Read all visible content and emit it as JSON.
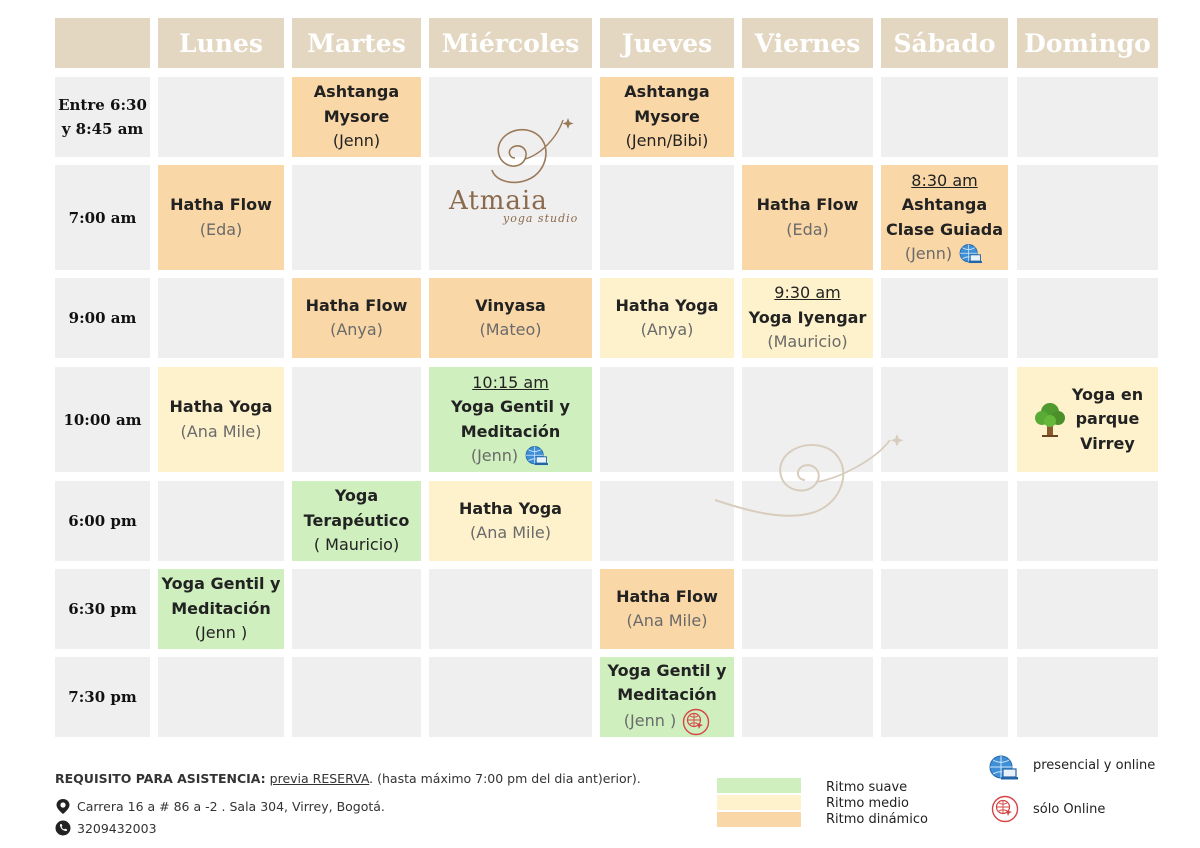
{
  "days": [
    "Lunes",
    "Martes",
    "Miércoles",
    "Jueves",
    "Viernes",
    "Sábado",
    "Domingo"
  ],
  "times": [
    [
      "Entre 6:30",
      "y 8:45 am"
    ],
    [
      "7:00 am"
    ],
    [
      "9:00 am"
    ],
    [
      "10:00 am"
    ],
    [
      "6:00 pm"
    ],
    [
      "6:30 pm"
    ],
    [
      "7:30 pm"
    ]
  ],
  "classes": [
    {
      "row": 0,
      "col": 1,
      "rhythm": "dinamico",
      "lines": [
        {
          "text": "Ashtanga",
          "style": "b"
        },
        {
          "text": "Mysore",
          "style": "b"
        },
        {
          "text": "(Jenn)",
          "style": ""
        }
      ]
    },
    {
      "row": 0,
      "col": 3,
      "rhythm": "dinamico",
      "lines": [
        {
          "text": "Ashtanga",
          "style": "b"
        },
        {
          "text": "Mysore",
          "style": "b"
        },
        {
          "text": "(Jenn/Bibi)",
          "style": ""
        }
      ]
    },
    {
      "row": 1,
      "col": 0,
      "rhythm": "dinamico",
      "lines": [
        {
          "text": "Hatha Flow",
          "style": "b"
        },
        {
          "text": "(Eda)",
          "style": "t"
        }
      ]
    },
    {
      "row": 1,
      "col": 4,
      "rhythm": "dinamico",
      "lines": [
        {
          "text": "Hatha Flow",
          "style": "b"
        },
        {
          "text": "(Eda)",
          "style": "t"
        }
      ]
    },
    {
      "row": 1,
      "col": 5,
      "rhythm": "dinamico",
      "icon": "globe-laptop-icon",
      "lines": [
        {
          "text": "8:30 am",
          "style": "u"
        },
        {
          "text": "Ashtanga",
          "style": "b"
        },
        {
          "text": "Clase Guiada",
          "style": "b"
        },
        {
          "text": "(Jenn)",
          "style": "t"
        }
      ]
    },
    {
      "row": 2,
      "col": 1,
      "rhythm": "dinamico",
      "lines": [
        {
          "text": "Hatha Flow",
          "style": "b"
        },
        {
          "text": "(Anya)",
          "style": "t"
        }
      ]
    },
    {
      "row": 2,
      "col": 2,
      "rhythm": "dinamico",
      "lines": [
        {
          "text": "Vinyasa",
          "style": "b"
        },
        {
          "text": "(Mateo)",
          "style": "t"
        }
      ]
    },
    {
      "row": 2,
      "col": 3,
      "rhythm": "medio",
      "lines": [
        {
          "text": "Hatha Yoga",
          "style": "b"
        },
        {
          "text": "(Anya)",
          "style": "t"
        }
      ]
    },
    {
      "row": 2,
      "col": 4,
      "rhythm": "medio",
      "lines": [
        {
          "text": "9:30 am ",
          "style": "u"
        },
        {
          "text": "Yoga Iyengar",
          "style": "b"
        },
        {
          "text": "(Mauricio)",
          "style": "t"
        }
      ]
    },
    {
      "row": 3,
      "col": 0,
      "rhythm": "medio",
      "lines": [
        {
          "text": "Hatha Yoga",
          "style": "b"
        },
        {
          "text": "(Ana Mile)",
          "style": "t"
        }
      ]
    },
    {
      "row": 3,
      "col": 2,
      "rhythm": "suave",
      "icon": "globe-laptop-icon",
      "lines": [
        {
          "text": "10:15 am ",
          "style": "u"
        },
        {
          "text": "Yoga Gentil y",
          "style": "b"
        },
        {
          "text": "Meditación",
          "style": "b"
        },
        {
          "text": "(Jenn)",
          "style": "t"
        }
      ]
    },
    {
      "row": 3,
      "col": 6,
      "rhythm": "medio",
      "tree": true,
      "lines": [
        {
          "text": "Yoga en",
          "style": "b"
        },
        {
          "text": "parque",
          "style": "b"
        },
        {
          "text": "Virrey",
          "style": "b"
        }
      ]
    },
    {
      "row": 4,
      "col": 1,
      "rhythm": "suave",
      "lines": [
        {
          "text": "Yoga",
          "style": "b"
        },
        {
          "text": "Terapéutico",
          "style": "b"
        },
        {
          "text": "( Mauricio)",
          "style": ""
        }
      ]
    },
    {
      "row": 4,
      "col": 2,
      "rhythm": "medio",
      "lines": [
        {
          "text": "Hatha Yoga",
          "style": "b"
        },
        {
          "text": "(Ana Mile)",
          "style": "t"
        }
      ]
    },
    {
      "row": 5,
      "col": 0,
      "rhythm": "suave",
      "lines": [
        {
          "text": "Yoga Gentil y",
          "style": "b"
        },
        {
          "text": "Meditación",
          "style": "b"
        },
        {
          "text": "(Jenn )",
          "style": ""
        }
      ]
    },
    {
      "row": 5,
      "col": 3,
      "rhythm": "dinamico",
      "lines": [
        {
          "text": "Hatha Flow",
          "style": "b"
        },
        {
          "text": "(Ana Mile)",
          "style": "t"
        }
      ]
    },
    {
      "row": 6,
      "col": 3,
      "rhythm": "suave",
      "icon": "online-only-icon",
      "lines": [
        {
          "text": "Yoga Gentil y",
          "style": "b"
        },
        {
          "text": "Meditación",
          "style": "b"
        },
        {
          "text": "(Jenn )",
          "style": "t"
        }
      ]
    }
  ],
  "logo": {
    "name": "Atmaia",
    "subtitle": "yoga studio"
  },
  "footer": {
    "requirement_label": "REQUISITO PARA ASISTENCIA:",
    "requirement_link": " previa RESERVA",
    "requirement_rest": ".  (hasta  máximo 7:00 pm del dia ant)erior).",
    "address": "Carrera 16 a # 86 a -2 . Sala 304, Virrey, Bogotá.",
    "phone": "3209432003"
  },
  "legend": {
    "rhythm": [
      {
        "label": "Ritmo suave",
        "color": "#cfefbf"
      },
      {
        "label": "Ritmo medio",
        "color": "#fdf2cc"
      },
      {
        "label": "Ritmo dinámico",
        "color": "#fad7a7"
      }
    ],
    "modes": [
      {
        "label": "presencial y online",
        "icon": "globe-laptop-icon"
      },
      {
        "label": "sólo Online",
        "icon": "online-only-icon"
      }
    ]
  },
  "colors": {
    "header": "#e4d7c2",
    "empty": "#f0eff0",
    "suave": "#cfefbf",
    "medio": "#fdf2cc",
    "dinamico": "#fad7a7",
    "brand": "#8a6a4c"
  }
}
